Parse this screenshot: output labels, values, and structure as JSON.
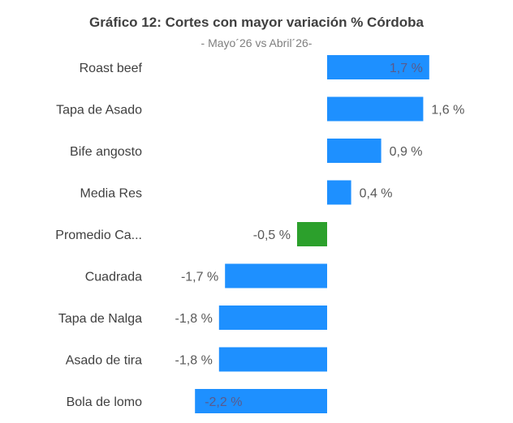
{
  "chart_data": {
    "type": "bar",
    "orientation": "horizontal",
    "title": "Gráfico 12: Cortes con mayor variación % Córdoba",
    "subtitle": "- Mayo´26 vs Abril´26-",
    "categories": [
      "Roast beef",
      "Tapa de Asado",
      "Bife angosto",
      "Media Res",
      "Promedio Ca...",
      "Cuadrada",
      "Tapa de Nalga",
      "Asado de tira",
      "Bola de lomo"
    ],
    "values": [
      1.7,
      1.6,
      0.9,
      0.4,
      -0.5,
      -1.7,
      -1.8,
      -1.8,
      -2.2
    ],
    "data_labels": [
      "1,7 %",
      "1,6 %",
      "0,9 %",
      "0,4 %",
      "-0,5 %",
      "-1,7 %",
      "-1,8 %",
      "-1,8 %",
      "-2,2 %"
    ],
    "highlight_index": 4,
    "colors": {
      "bar": "#1e90ff",
      "highlight": "#2ca02c",
      "label": "#595959",
      "label_inside": "#5a5a8c"
    },
    "grid": false,
    "legend": "none"
  }
}
